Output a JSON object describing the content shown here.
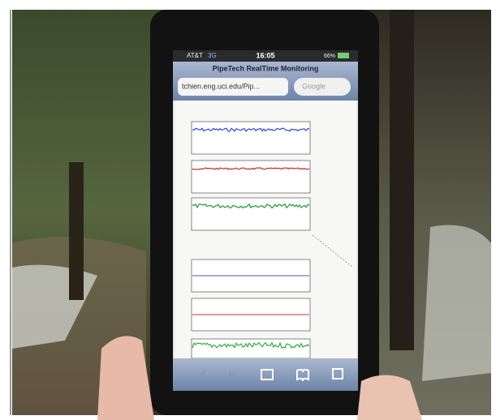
{
  "status_bar": {
    "carrier": "AT&T",
    "network": "3G",
    "time": "16:05",
    "battery": "66%"
  },
  "page_title": "PipeTech RealTime Monitoring",
  "url": "tchien.eng.uci.edu/Pip...",
  "search_placeholder": "Google"
}
